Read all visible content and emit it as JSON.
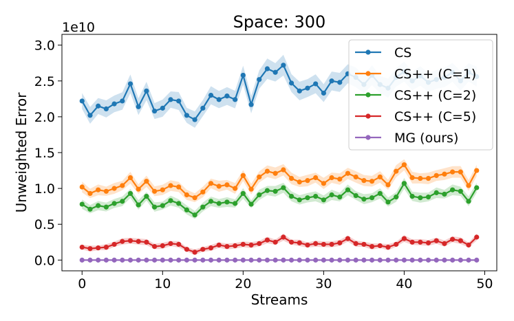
{
  "chart_data": {
    "type": "line",
    "title": "Space: 300",
    "xlabel": "Streams",
    "ylabel": "Unweighted Error",
    "y_scale_label": "1e10",
    "xlim": [
      -2.5,
      51.5
    ],
    "ylim": [
      -0.15,
      3.15
    ],
    "xticks": [
      0,
      10,
      20,
      30,
      40,
      50
    ],
    "xtick_labels": [
      "0",
      "10",
      "20",
      "30",
      "40",
      "50"
    ],
    "yticks": [
      0,
      0.5,
      1.0,
      1.5,
      2.0,
      2.5,
      3.0
    ],
    "ytick_labels": [
      "0.0",
      "0.5",
      "1.0",
      "1.5",
      "2.0",
      "2.5",
      "3.0"
    ],
    "legend_position": "top-right",
    "x": [
      0,
      1,
      2,
      3,
      4,
      5,
      6,
      7,
      8,
      9,
      10,
      11,
      12,
      13,
      14,
      15,
      16,
      17,
      18,
      19,
      20,
      21,
      22,
      23,
      24,
      25,
      26,
      27,
      28,
      29,
      30,
      31,
      32,
      33,
      34,
      35,
      36,
      37,
      38,
      39,
      40,
      41,
      42,
      43,
      44,
      45,
      46,
      47,
      48,
      49
    ],
    "series": [
      {
        "name": "CS",
        "color": "#1f77b4",
        "values": [
          2.22,
          2.02,
          2.15,
          2.11,
          2.18,
          2.22,
          2.46,
          2.14,
          2.36,
          2.08,
          2.12,
          2.24,
          2.22,
          2.02,
          1.96,
          2.12,
          2.3,
          2.24,
          2.29,
          2.24,
          2.58,
          2.17,
          2.52,
          2.67,
          2.62,
          2.72,
          2.47,
          2.36,
          2.4,
          2.46,
          2.33,
          2.5,
          2.48,
          2.6,
          2.55,
          2.45,
          2.58,
          2.45,
          2.4,
          2.55,
          2.63,
          2.5,
          2.57,
          2.48,
          2.52,
          2.55,
          2.62,
          2.5,
          2.62,
          2.56
        ]
      },
      {
        "name": "CS++ (C=1)",
        "color": "#ff7f0e",
        "values": [
          1.02,
          0.93,
          0.98,
          0.96,
          1.0,
          1.04,
          1.15,
          0.99,
          1.1,
          0.96,
          0.98,
          1.04,
          1.02,
          0.91,
          0.87,
          0.95,
          1.07,
          1.03,
          1.05,
          1.0,
          1.18,
          0.99,
          1.16,
          1.24,
          1.21,
          1.26,
          1.14,
          1.09,
          1.11,
          1.15,
          1.07,
          1.15,
          1.13,
          1.21,
          1.16,
          1.11,
          1.1,
          1.16,
          1.05,
          1.24,
          1.33,
          1.15,
          1.14,
          1.14,
          1.18,
          1.2,
          1.23,
          1.23,
          1.04,
          1.25
        ]
      },
      {
        "name": "CS++ (C=2)",
        "color": "#2ca02c",
        "values": [
          0.78,
          0.71,
          0.76,
          0.74,
          0.79,
          0.82,
          0.93,
          0.77,
          0.89,
          0.74,
          0.76,
          0.83,
          0.79,
          0.7,
          0.63,
          0.74,
          0.82,
          0.79,
          0.81,
          0.79,
          0.93,
          0.78,
          0.91,
          0.97,
          0.96,
          1.01,
          0.89,
          0.84,
          0.87,
          0.89,
          0.84,
          0.91,
          0.88,
          0.98,
          0.9,
          0.85,
          0.87,
          0.93,
          0.81,
          0.88,
          1.07,
          0.89,
          0.87,
          0.88,
          0.94,
          0.92,
          0.98,
          0.96,
          0.82,
          1.01
        ]
      },
      {
        "name": "CS++ (C=5)",
        "color": "#d62728",
        "values": [
          0.18,
          0.16,
          0.17,
          0.18,
          0.22,
          0.26,
          0.27,
          0.26,
          0.25,
          0.19,
          0.2,
          0.23,
          0.22,
          0.15,
          0.11,
          0.15,
          0.17,
          0.21,
          0.19,
          0.2,
          0.22,
          0.21,
          0.23,
          0.28,
          0.25,
          0.32,
          0.25,
          0.24,
          0.21,
          0.23,
          0.22,
          0.22,
          0.24,
          0.3,
          0.23,
          0.22,
          0.19,
          0.2,
          0.18,
          0.22,
          0.3,
          0.25,
          0.25,
          0.24,
          0.27,
          0.23,
          0.29,
          0.27,
          0.21,
          0.32
        ]
      },
      {
        "name": "MG (ours)",
        "color": "#9467bd",
        "values": [
          0,
          0,
          0,
          0,
          0,
          0,
          0,
          0,
          0,
          0,
          0,
          0,
          0,
          0,
          0,
          0,
          0,
          0,
          0,
          0,
          0,
          0,
          0,
          0,
          0,
          0,
          0,
          0,
          0,
          0,
          0,
          0,
          0,
          0,
          0,
          0,
          0,
          0,
          0,
          0,
          0,
          0,
          0,
          0,
          0,
          0,
          0,
          0,
          0,
          0
        ]
      }
    ]
  }
}
